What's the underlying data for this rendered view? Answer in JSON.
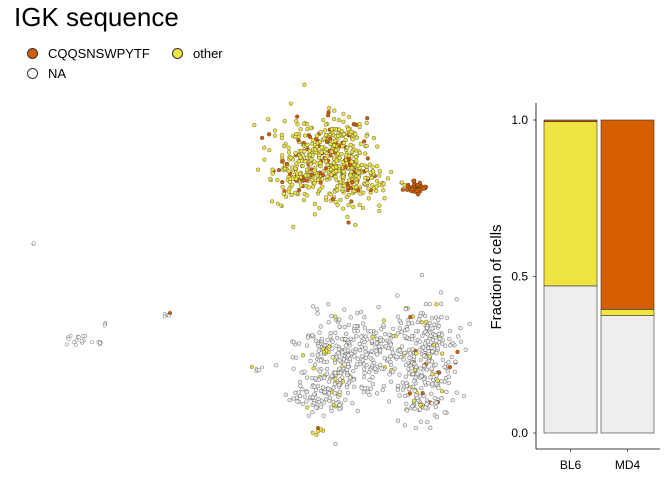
{
  "title": "IGK sequence",
  "legend": {
    "items": [
      {
        "label": "CQQSNSWPYTF",
        "color": "#d55e00"
      },
      {
        "label": "other",
        "color": "#f0e442"
      },
      {
        "label": "NA",
        "color": "#ffffff"
      }
    ]
  },
  "colors": {
    "cqq": "#d55e00",
    "other": "#f0e442",
    "na": "#eeeeee",
    "stroke": "#333333"
  },
  "chart_data": [
    {
      "type": "scatter",
      "title": "",
      "xlabel": "",
      "ylabel": "",
      "note": "UMAP embedding, no axes",
      "series": [
        {
          "name": "CQQSNSWPYTF"
        },
        {
          "name": "other"
        },
        {
          "name": "NA"
        }
      ]
    },
    {
      "type": "bar",
      "stacked": true,
      "categories": [
        "BL6",
        "MD4"
      ],
      "series": [
        {
          "name": "NA",
          "values": [
            0.47,
            0.375
          ]
        },
        {
          "name": "other",
          "values": [
            0.525,
            0.02
          ]
        },
        {
          "name": "CQQSNSWPYTF",
          "values": [
            0.005,
            0.605
          ]
        }
      ],
      "ylabel": "Fraction of cells",
      "ylim": [
        0,
        1
      ],
      "yticks": [
        0.0,
        0.5,
        1.0
      ],
      "ytick_labels": [
        "0.0",
        "0.5",
        "1.0"
      ]
    }
  ]
}
